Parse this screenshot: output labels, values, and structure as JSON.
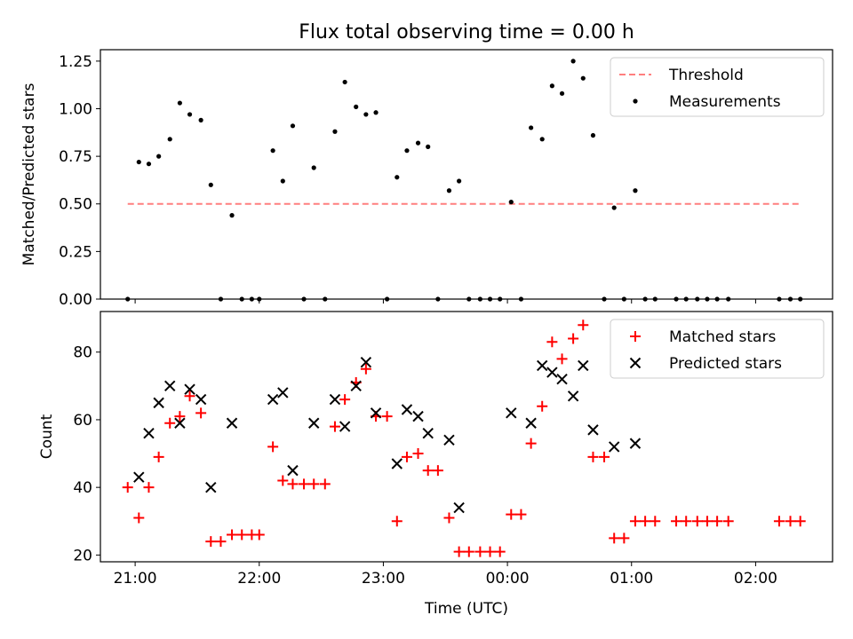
{
  "title": "Flux total observing time = 0.00 h",
  "chart_data": [
    {
      "type": "scatter",
      "ylabel": "Matched/Predicted stars",
      "xlim": [
        20.72,
        26.62
      ],
      "ylim": [
        0,
        1.31
      ],
      "yticks": [
        0.0,
        0.25,
        0.5,
        0.75,
        1.0,
        1.25
      ],
      "yticklabels": [
        "0.00",
        "0.25",
        "0.50",
        "0.75",
        "1.00",
        "1.25"
      ],
      "xticks": [
        21,
        22,
        23,
        24,
        25,
        26
      ],
      "xticklabels": [],
      "legend": {
        "position": "top-right",
        "entries": [
          "Threshold",
          "Measurements"
        ]
      },
      "threshold": {
        "name": "Threshold",
        "y": 0.5,
        "x": [
          20.94,
          26.37
        ],
        "color": "#ff7f7f",
        "style": "dashed"
      },
      "series": [
        {
          "name": "Measurements",
          "color": "#000000",
          "marker": "dot",
          "points": [
            [
              20.94,
              0.0
            ],
            [
              21.03,
              0.72
            ],
            [
              21.11,
              0.71
            ],
            [
              21.19,
              0.75
            ],
            [
              21.28,
              0.84
            ],
            [
              21.36,
              1.03
            ],
            [
              21.44,
              0.97
            ],
            [
              21.53,
              0.94
            ],
            [
              21.61,
              0.6
            ],
            [
              21.69,
              0.0
            ],
            [
              21.78,
              0.44
            ],
            [
              21.86,
              0.0
            ],
            [
              21.94,
              0.0
            ],
            [
              22.0,
              0.0
            ],
            [
              22.11,
              0.78
            ],
            [
              22.19,
              0.62
            ],
            [
              22.27,
              0.91
            ],
            [
              22.36,
              0.0
            ],
            [
              22.44,
              0.69
            ],
            [
              22.53,
              0.0
            ],
            [
              22.61,
              0.88
            ],
            [
              22.69,
              1.14
            ],
            [
              22.78,
              1.01
            ],
            [
              22.86,
              0.97
            ],
            [
              22.94,
              0.98
            ],
            [
              23.03,
              0.0
            ],
            [
              23.11,
              0.64
            ],
            [
              23.19,
              0.78
            ],
            [
              23.28,
              0.82
            ],
            [
              23.36,
              0.8
            ],
            [
              23.44,
              0.0
            ],
            [
              23.53,
              0.57
            ],
            [
              23.61,
              0.62
            ],
            [
              23.69,
              0.0
            ],
            [
              23.78,
              0.0
            ],
            [
              23.86,
              0.0
            ],
            [
              23.94,
              0.0
            ],
            [
              24.03,
              0.51
            ],
            [
              24.11,
              0.0
            ],
            [
              24.19,
              0.9
            ],
            [
              24.28,
              0.84
            ],
            [
              24.36,
              1.12
            ],
            [
              24.44,
              1.08
            ],
            [
              24.53,
              1.25
            ],
            [
              24.61,
              1.16
            ],
            [
              24.69,
              0.86
            ],
            [
              24.78,
              0.0
            ],
            [
              24.86,
              0.48
            ],
            [
              24.94,
              0.0
            ],
            [
              25.03,
              0.57
            ],
            [
              25.11,
              0.0
            ],
            [
              25.19,
              0.0
            ],
            [
              25.36,
              0.0
            ],
            [
              25.44,
              0.0
            ],
            [
              25.53,
              0.0
            ],
            [
              25.61,
              0.0
            ],
            [
              25.69,
              0.0
            ],
            [
              25.78,
              0.0
            ],
            [
              26.19,
              0.0
            ],
            [
              26.28,
              0.0
            ],
            [
              26.36,
              0.0
            ]
          ]
        }
      ]
    },
    {
      "type": "scatter",
      "xlabel": "Time (UTC)",
      "ylabel": "Count",
      "xlim": [
        20.72,
        26.62
      ],
      "ylim": [
        18,
        92
      ],
      "yticks": [
        20,
        40,
        60,
        80
      ],
      "yticklabels": [
        "20",
        "40",
        "60",
        "80"
      ],
      "xticks": [
        21,
        22,
        23,
        24,
        25,
        26
      ],
      "xticklabels": [
        "21:00",
        "22:00",
        "23:00",
        "00:00",
        "01:00",
        "02:00"
      ],
      "legend": {
        "position": "top-right",
        "entries": [
          "Matched stars",
          "Predicted stars"
        ]
      },
      "series": [
        {
          "name": "Matched stars",
          "color": "#ff0000",
          "marker": "plus",
          "points": [
            [
              20.94,
              40
            ],
            [
              21.03,
              31
            ],
            [
              21.11,
              40
            ],
            [
              21.19,
              49
            ],
            [
              21.28,
              59
            ],
            [
              21.36,
              61
            ],
            [
              21.44,
              67
            ],
            [
              21.53,
              62
            ],
            [
              21.61,
              24
            ],
            [
              21.69,
              24
            ],
            [
              21.78,
              26
            ],
            [
              21.86,
              26
            ],
            [
              21.94,
              26
            ],
            [
              22.0,
              26
            ],
            [
              22.11,
              52
            ],
            [
              22.19,
              42
            ],
            [
              22.27,
              41
            ],
            [
              22.36,
              41
            ],
            [
              22.44,
              41
            ],
            [
              22.53,
              41
            ],
            [
              22.61,
              58
            ],
            [
              22.69,
              66
            ],
            [
              22.78,
              71
            ],
            [
              22.86,
              75
            ],
            [
              22.94,
              61
            ],
            [
              23.03,
              61
            ],
            [
              23.11,
              30
            ],
            [
              23.19,
              49
            ],
            [
              23.28,
              50
            ],
            [
              23.36,
              45
            ],
            [
              23.44,
              45
            ],
            [
              23.53,
              31
            ],
            [
              23.61,
              21
            ],
            [
              23.69,
              21
            ],
            [
              23.78,
              21
            ],
            [
              23.86,
              21
            ],
            [
              23.94,
              21
            ],
            [
              24.03,
              32
            ],
            [
              24.11,
              32
            ],
            [
              24.19,
              53
            ],
            [
              24.28,
              64
            ],
            [
              24.36,
              83
            ],
            [
              24.44,
              78
            ],
            [
              24.53,
              84
            ],
            [
              24.61,
              88
            ],
            [
              24.69,
              49
            ],
            [
              24.78,
              49
            ],
            [
              24.86,
              25
            ],
            [
              24.94,
              25
            ],
            [
              25.03,
              30
            ],
            [
              25.11,
              30
            ],
            [
              25.19,
              30
            ],
            [
              25.36,
              30
            ],
            [
              25.44,
              30
            ],
            [
              25.53,
              30
            ],
            [
              25.61,
              30
            ],
            [
              25.69,
              30
            ],
            [
              25.78,
              30
            ],
            [
              26.19,
              30
            ],
            [
              26.28,
              30
            ],
            [
              26.36,
              30
            ]
          ]
        },
        {
          "name": "Predicted stars",
          "color": "#000000",
          "marker": "x",
          "points": [
            [
              21.03,
              43
            ],
            [
              21.11,
              56
            ],
            [
              21.19,
              65
            ],
            [
              21.28,
              70
            ],
            [
              21.36,
              59
            ],
            [
              21.44,
              69
            ],
            [
              21.53,
              66
            ],
            [
              21.61,
              40
            ],
            [
              21.78,
              59
            ],
            [
              22.11,
              66
            ],
            [
              22.19,
              68
            ],
            [
              22.27,
              45
            ],
            [
              22.44,
              59
            ],
            [
              22.61,
              66
            ],
            [
              22.69,
              58
            ],
            [
              22.78,
              70
            ],
            [
              22.86,
              77
            ],
            [
              22.94,
              62
            ],
            [
              23.11,
              47
            ],
            [
              23.19,
              63
            ],
            [
              23.28,
              61
            ],
            [
              23.36,
              56
            ],
            [
              23.53,
              54
            ],
            [
              23.61,
              34
            ],
            [
              24.03,
              62
            ],
            [
              24.19,
              59
            ],
            [
              24.28,
              76
            ],
            [
              24.36,
              74
            ],
            [
              24.44,
              72
            ],
            [
              24.53,
              67
            ],
            [
              24.61,
              76
            ],
            [
              24.69,
              57
            ],
            [
              24.86,
              52
            ],
            [
              25.03,
              53
            ]
          ]
        }
      ]
    }
  ]
}
